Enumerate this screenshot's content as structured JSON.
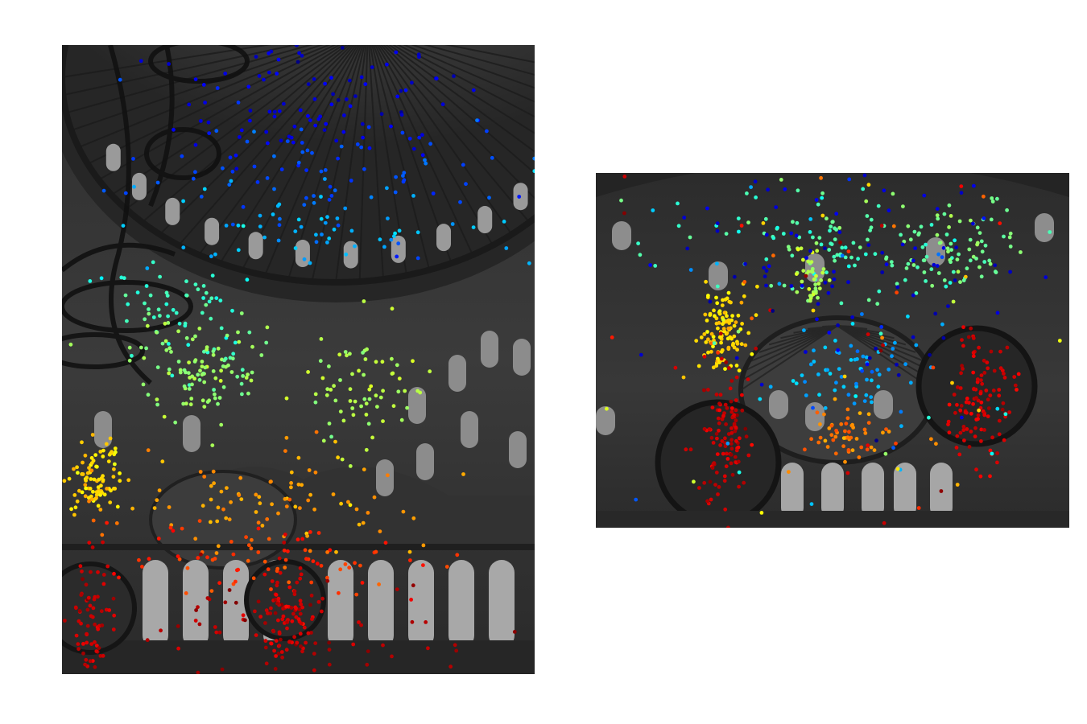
{
  "figure": {
    "panels": [
      {
        "name": "source-view",
        "scene": "grayscale-dome-interior-tall",
        "point_count": 1100,
        "colormap": "jet",
        "color_axis": "vertical-position",
        "clusters": [
          {
            "u": 0.62,
            "v": 0.03,
            "su": 0.3,
            "sv": 0.05,
            "n": 40,
            "t": 0.06
          },
          {
            "u": 0.5,
            "v": 0.1,
            "su": 0.35,
            "sv": 0.05,
            "n": 70,
            "t": 0.1
          },
          {
            "u": 0.55,
            "v": 0.2,
            "su": 0.4,
            "sv": 0.05,
            "n": 80,
            "t": 0.2
          },
          {
            "u": 0.55,
            "v": 0.29,
            "su": 0.4,
            "sv": 0.035,
            "n": 60,
            "t": 0.3
          },
          {
            "u": 0.25,
            "v": 0.42,
            "su": 0.15,
            "sv": 0.05,
            "n": 60,
            "t": 0.42
          },
          {
            "u": 0.3,
            "v": 0.51,
            "su": 0.14,
            "sv": 0.04,
            "n": 110,
            "t": 0.52
          },
          {
            "u": 0.65,
            "v": 0.55,
            "su": 0.12,
            "sv": 0.05,
            "n": 70,
            "t": 0.55
          },
          {
            "u": 0.07,
            "v": 0.68,
            "su": 0.06,
            "sv": 0.03,
            "n": 90,
            "t": 0.66
          },
          {
            "u": 0.45,
            "v": 0.72,
            "su": 0.35,
            "sv": 0.04,
            "n": 90,
            "t": 0.72
          },
          {
            "u": 0.45,
            "v": 0.82,
            "su": 0.35,
            "sv": 0.03,
            "n": 80,
            "t": 0.82
          },
          {
            "u": 0.06,
            "v": 0.91,
            "su": 0.05,
            "sv": 0.05,
            "n": 70,
            "t": 0.93
          },
          {
            "u": 0.47,
            "v": 0.91,
            "su": 0.07,
            "sv": 0.05,
            "n": 90,
            "t": 0.92
          },
          {
            "u": 0.5,
            "v": 0.93,
            "su": 0.35,
            "sv": 0.04,
            "n": 70,
            "t": 0.95
          }
        ]
      },
      {
        "name": "target-view",
        "scene": "grayscale-dome-interior-wide",
        "point_count": 950,
        "colormap": "jet",
        "color_axis": "matched-source-position",
        "clusters": [
          {
            "u": 0.5,
            "v": 0.2,
            "su": 0.35,
            "sv": 0.08,
            "n": 120,
            "t": 0.45
          },
          {
            "u": 0.77,
            "v": 0.2,
            "su": 0.12,
            "sv": 0.08,
            "n": 60,
            "t": 0.5
          },
          {
            "u": 0.46,
            "v": 0.3,
            "su": 0.04,
            "sv": 0.04,
            "n": 40,
            "t": 0.55
          },
          {
            "u": 0.27,
            "v": 0.45,
            "su": 0.05,
            "sv": 0.06,
            "n": 110,
            "t": 0.66
          },
          {
            "u": 0.55,
            "v": 0.55,
            "su": 0.12,
            "sv": 0.06,
            "n": 60,
            "t": 0.3
          },
          {
            "u": 0.53,
            "v": 0.74,
            "su": 0.1,
            "sv": 0.03,
            "n": 50,
            "t": 0.75
          },
          {
            "u": 0.27,
            "v": 0.75,
            "su": 0.06,
            "sv": 0.1,
            "n": 110,
            "t": 0.93
          },
          {
            "u": 0.81,
            "v": 0.64,
            "su": 0.07,
            "sv": 0.09,
            "n": 110,
            "t": 0.92
          },
          {
            "u": 0.5,
            "v": 0.5,
            "su": 0.45,
            "sv": 0.4,
            "n": 150,
            "t": -1
          },
          {
            "u": 0.55,
            "v": 0.25,
            "su": 0.4,
            "sv": 0.18,
            "n": 90,
            "t": 0.08
          }
        ]
      }
    ]
  }
}
